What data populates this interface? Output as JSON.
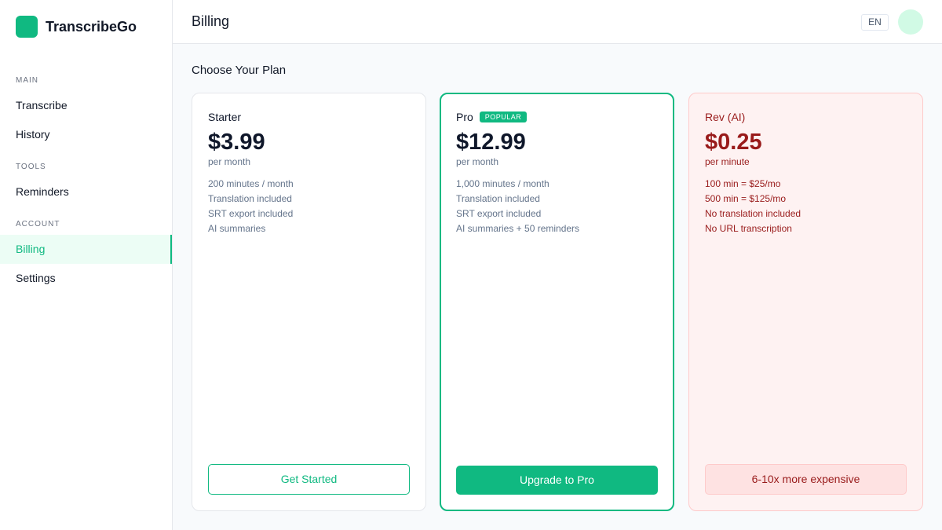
{
  "app": {
    "name": "TranscribeGo"
  },
  "sidebar": {
    "sections": [
      {
        "label": "MAIN",
        "items": [
          {
            "label": "Transcribe"
          },
          {
            "label": "History"
          }
        ]
      },
      {
        "label": "TOOLS",
        "items": [
          {
            "label": "Reminders"
          }
        ]
      },
      {
        "label": "ACCOUNT",
        "items": [
          {
            "label": "Billing",
            "active": true
          },
          {
            "label": "Settings"
          }
        ]
      }
    ]
  },
  "header": {
    "title": "Billing",
    "language": "EN"
  },
  "main": {
    "heading": "Choose Your Plan",
    "plans": [
      {
        "name": "Starter",
        "price": "$3.99",
        "period": "per month",
        "features": [
          "200 minutes / month",
          "Translation included",
          "SRT export included",
          "AI summaries"
        ],
        "button": "Get Started"
      },
      {
        "name": "Pro",
        "badge": "POPULAR",
        "price": "$12.99",
        "period": "per month",
        "features": [
          "1,000 minutes / month",
          "Translation included",
          "SRT export included",
          "AI summaries + 50 reminders"
        ],
        "button": "Upgrade to Pro"
      },
      {
        "name": "Rev (AI)",
        "price": "$0.25",
        "period": "per minute",
        "features": [
          "100 min = $25/mo",
          "500 min = $125/mo",
          "No translation included",
          "No URL transcription"
        ],
        "button": "6-10x more expensive"
      }
    ]
  },
  "colors": {
    "accent": "#10b981",
    "danger": "#991b1b"
  }
}
